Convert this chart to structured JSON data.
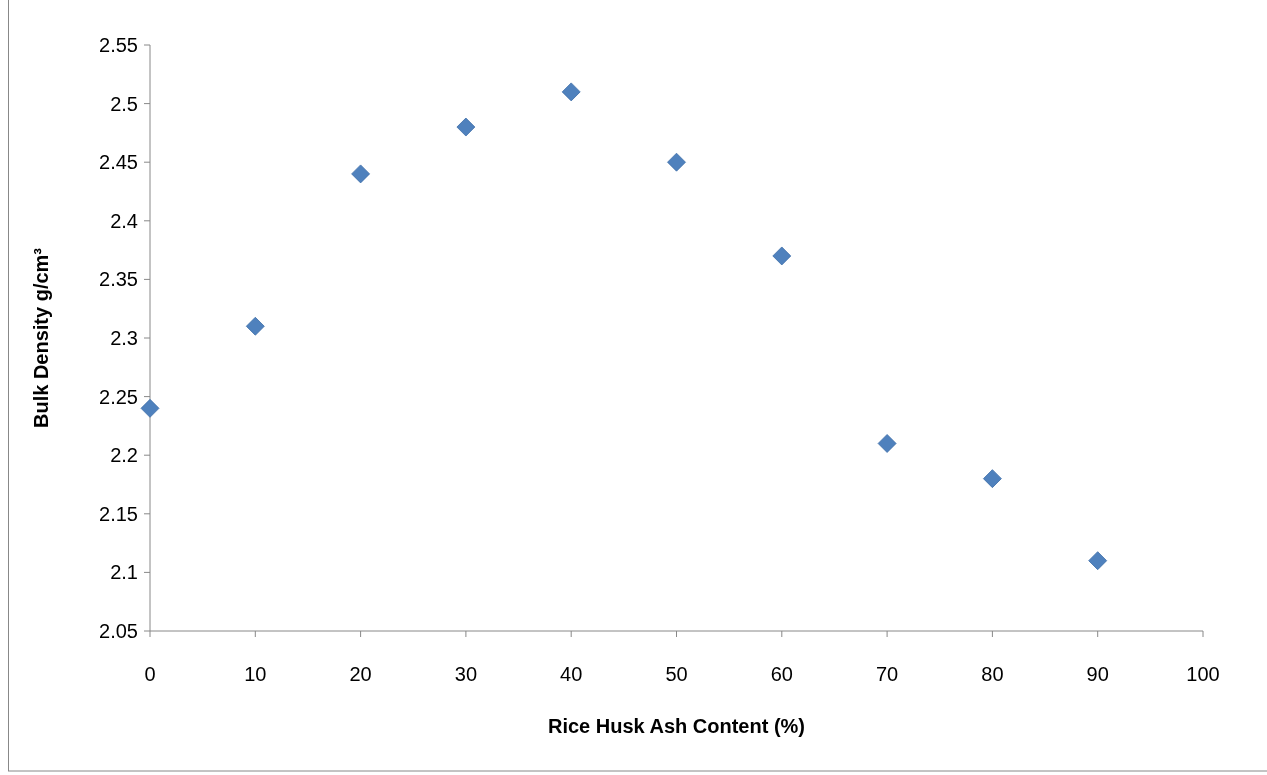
{
  "chart_data": {
    "type": "scatter",
    "xlabel": "Rice Husk Ash Content (%)",
    "ylabel": "Bulk Density g/cm³",
    "x": [
      0,
      10,
      20,
      30,
      40,
      50,
      60,
      70,
      80,
      90
    ],
    "series": [
      {
        "color": "#4f81bd",
        "values": [
          2.24,
          2.31,
          2.44,
          2.48,
          2.51,
          2.45,
          2.37,
          2.21,
          2.18,
          2.11
        ]
      }
    ],
    "xlim": [
      0,
      100
    ],
    "xticks": [
      0,
      10,
      20,
      30,
      40,
      50,
      60,
      70,
      80,
      90,
      100
    ],
    "ylim": [
      2.05,
      2.55
    ],
    "yticks": [
      2.05,
      2.1,
      2.15,
      2.2,
      2.25,
      2.3,
      2.35,
      2.4,
      2.45,
      2.5,
      2.55
    ],
    "marker": "diamond"
  }
}
